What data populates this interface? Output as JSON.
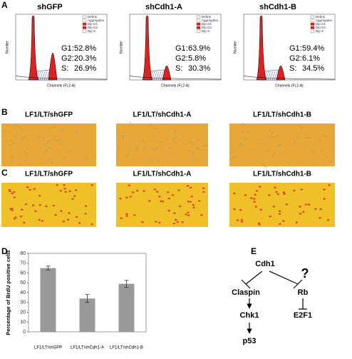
{
  "panel_labels": [
    "A",
    "B",
    "C",
    "D",
    "E"
  ],
  "flow": {
    "y_label": "Number",
    "x_label": "Channels (FL2-A)",
    "legend": [
      "Debris",
      "Aggregates",
      "Dip G1",
      "Dip G2",
      "Dip S"
    ],
    "plots": [
      {
        "title": "shGFP",
        "stats": [
          {
            "label": "G1:",
            "value": "52.8%"
          },
          {
            "label": "G2:",
            "value": "20.3%"
          },
          {
            "label": "S:",
            "value": "26.9%"
          }
        ]
      },
      {
        "title": "shCdh1-A",
        "stats": [
          {
            "label": "G1:",
            "value": "63.9%"
          },
          {
            "label": "G2:",
            "value": "5.8%"
          },
          {
            "label": "S:",
            "value": "30.3%"
          }
        ]
      },
      {
        "title": "shCdh1-B",
        "stats": [
          {
            "label": "G1:",
            "value": "59.4%"
          },
          {
            "label": "G2:",
            "value": "6.1%"
          },
          {
            "label": "S:",
            "value": "34.5%"
          }
        ]
      }
    ]
  },
  "images_b": [
    "LF1/LT/shGFP",
    "LF1/LT/shCdh1-A",
    "LF1/LT/shCdh1-B"
  ],
  "images_c": [
    "LF1/LT/shGFP",
    "LF1/LT/shCdh1-A",
    "LF1/LT/shCdh1-B"
  ],
  "chart_data": {
    "type": "bar",
    "y_label": "Percentage of BrdU positive cells",
    "categories": [
      "LF1/LT/shGFP",
      "LF1/LT/shCdh1-A",
      "LF1/LT/shCdh1-B"
    ],
    "values": [
      65,
      34,
      49
    ],
    "errors": [
      2,
      4,
      3.5
    ],
    "color": "#999999",
    "ylim": [
      0,
      80
    ],
    "yticks": [
      0,
      10,
      20,
      30,
      40,
      50,
      60,
      70,
      80
    ],
    "grid": false
  },
  "diagram": {
    "nodes": [
      "Cdh1",
      "Claspin",
      "Rb",
      "Chk1",
      "E2F1",
      "p53"
    ],
    "question": "?"
  }
}
